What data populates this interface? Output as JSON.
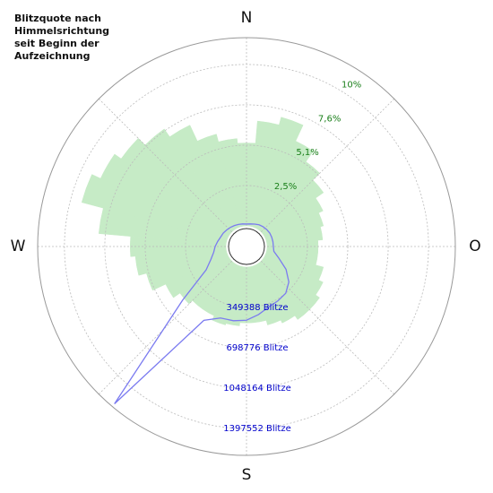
{
  "chart_data": {
    "type": "polar",
    "title": [
      "Blitzquote nach",
      "Himmelsrichtung",
      "seit Beginn der",
      "Aufzeichnung"
    ],
    "directions": [
      "N",
      "O",
      "S",
      "W"
    ],
    "theta": [
      0,
      10,
      20,
      30,
      40,
      50,
      60,
      70,
      80,
      90,
      100,
      110,
      120,
      130,
      140,
      150,
      160,
      170,
      180,
      190,
      200,
      210,
      220,
      230,
      240,
      250,
      260,
      270,
      280,
      290,
      300,
      310,
      320,
      330,
      340,
      350
    ],
    "series": [
      {
        "name": "Blitzquote",
        "color": "#c6ebc6",
        "label_color": "#1a7f1a",
        "values": [
          5.2,
          6.6,
          7.1,
          6.0,
          5.2,
          4.6,
          4.0,
          3.7,
          3.5,
          3.2,
          3.2,
          3.7,
          4.0,
          4.3,
          4.3,
          4.0,
          3.8,
          3.5,
          3.5,
          3.7,
          3.8,
          3.5,
          3.5,
          3.8,
          4.3,
          5.2,
          5.7,
          6.0,
          8.0,
          9.4,
          8.8,
          8.3,
          7.7,
          7.1,
          6.0,
          5.5
        ]
      },
      {
        "name": "Blitze",
        "axis": "r2",
        "color": "#7b7bf0",
        "label_color": "#0000cc",
        "values": [
          16000,
          20000,
          28000,
          39000,
          45000,
          50000,
          54000,
          54000,
          54000,
          54000,
          62000,
          120000,
          217000,
          300000,
          350000,
          365000,
          380000,
          420000,
          460000,
          474000,
          480000,
          560000,
          1600000,
          543000,
          225000,
          150000,
          110000,
          93000,
          75000,
          60000,
          54000,
          45000,
          38000,
          31000,
          25000,
          20000
        ]
      }
    ],
    "rlim": [
      0,
      11.8
    ],
    "rticks": [
      {
        "value": 2.53,
        "label": "2,5%"
      },
      {
        "value": 5.06,
        "label": "5,1%"
      },
      {
        "value": 7.59,
        "label": "7,6%"
      },
      {
        "value": 10.12,
        "label": "10%"
      }
    ],
    "r2lim": [
      0,
      1630000
    ],
    "r2ticks": [
      {
        "value": 349388,
        "label": "349388 Blitze"
      },
      {
        "value": 698776,
        "label": "698776 Blitze"
      },
      {
        "value": 1048164,
        "label": "1048164 Blitze"
      },
      {
        "value": 1397552,
        "label": "1397552 Blitze"
      }
    ],
    "grid": true
  }
}
